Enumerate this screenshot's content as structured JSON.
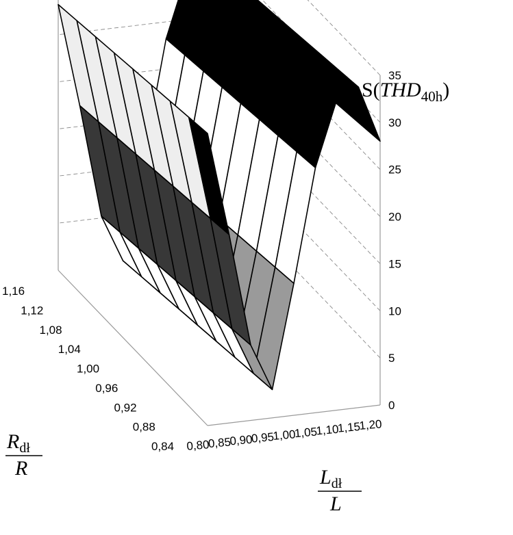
{
  "chart_data": {
    "type": "surface3d",
    "x_axis": {
      "ticks": [
        "0,80",
        "0,85",
        "0,90",
        "0,95",
        "1,00",
        "1,05",
        "1,10",
        "1,15",
        "1,20"
      ],
      "label_main": "L",
      "label_sub": "dł",
      "label_den": "L"
    },
    "y_axis": {
      "ticks": [
        "0,84",
        "0,88",
        "0,92",
        "0,96",
        "1,00",
        "1,04",
        "1,08",
        "1,12",
        "1,16"
      ],
      "label_main": "R",
      "label_sub": "dł",
      "label_den": "R"
    },
    "z_axis": {
      "ticks": [
        "0",
        "5",
        "10",
        "15",
        "20",
        "25",
        "30",
        "35"
      ],
      "label_prefix": "S(",
      "label_main": "THD",
      "label_sub": "40h",
      "label_suffix": ")",
      "zlim": [
        0,
        35
      ]
    },
    "x_values": [
      0.8,
      0.85,
      0.9,
      0.95,
      1.0,
      1.05,
      1.1,
      1.15,
      1.2
    ],
    "y_values": [
      0.84,
      0.88,
      0.92,
      0.96,
      1.0,
      1.04,
      1.08,
      1.12,
      1.16
    ],
    "z_by_x": [
      31,
      20,
      8,
      3,
      14,
      26,
      33,
      34,
      28
    ],
    "z_slope_per_y_step": -0.35,
    "color_bands": [
      {
        "max": 5,
        "color": "#ffffff"
      },
      {
        "max": 10,
        "color": "#9a9a9a"
      },
      {
        "max": 15,
        "color": "#383838"
      },
      {
        "max": 20,
        "color": "#ffffff"
      },
      {
        "max": 25,
        "color": "#eeeeee"
      },
      {
        "max": 30,
        "color": "#000000"
      },
      {
        "max": 35,
        "color": "#000000"
      }
    ],
    "grid": true,
    "legend": "none"
  }
}
